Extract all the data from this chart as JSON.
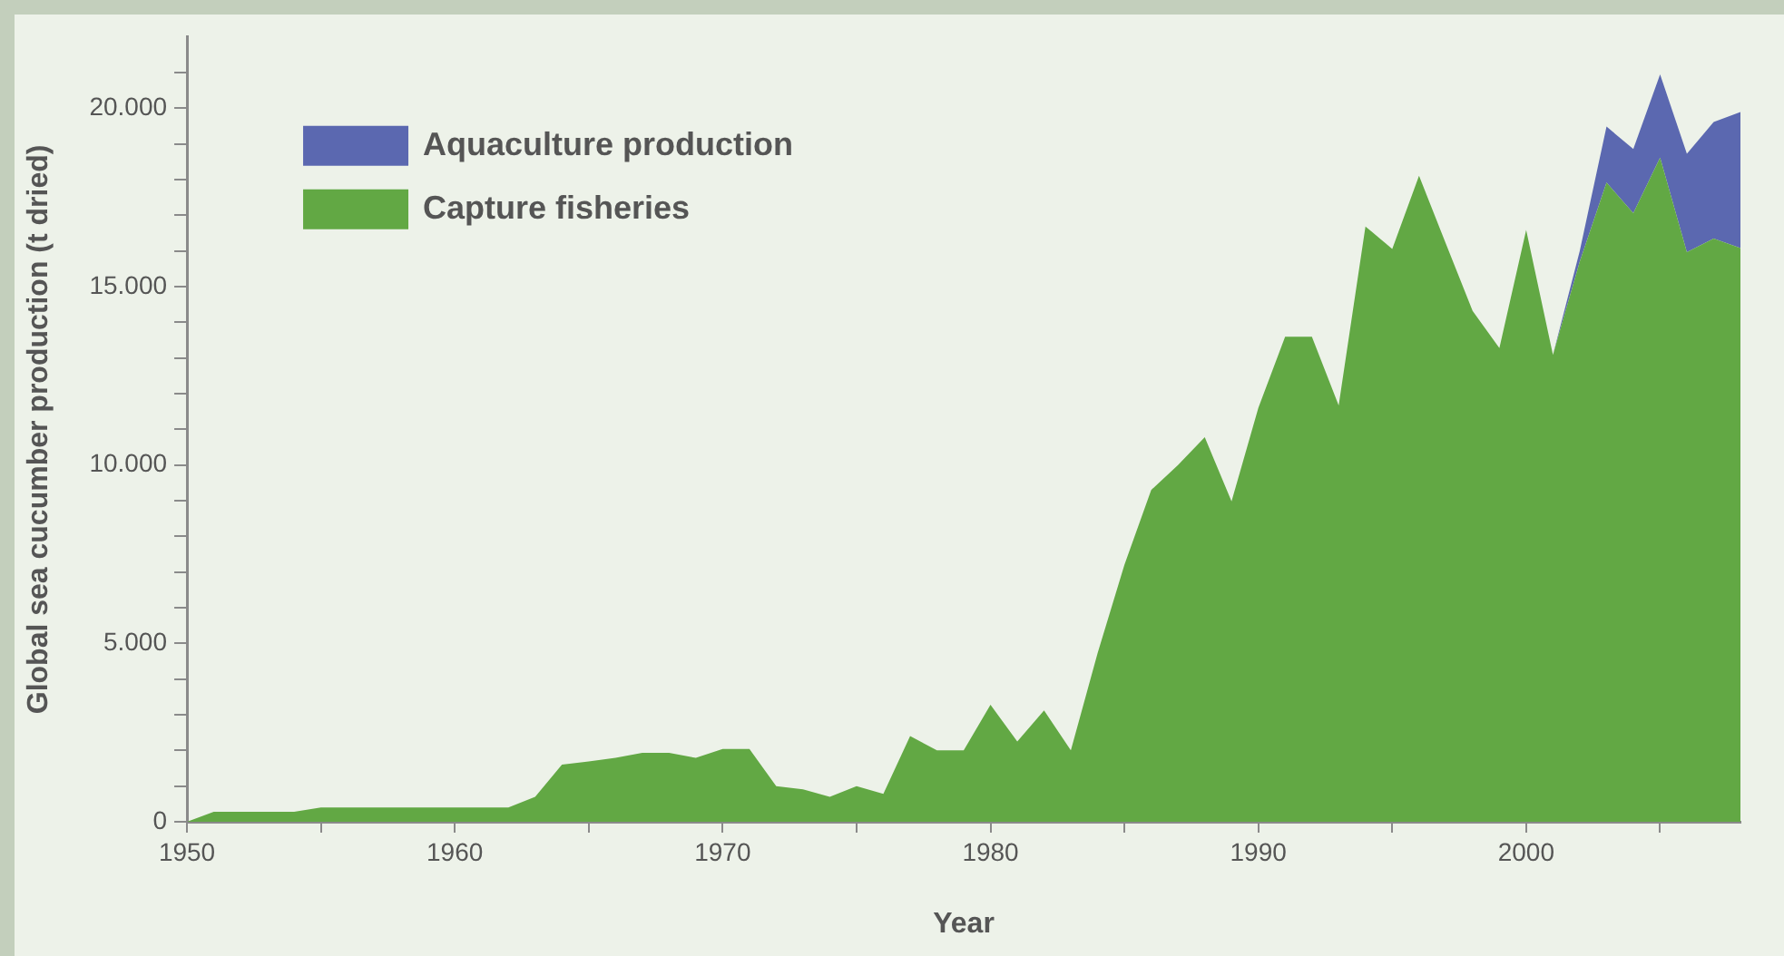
{
  "chart_data": {
    "type": "area",
    "stacked": true,
    "xlabel": "Year",
    "ylabel": "Global sea cucumber production (t dried)",
    "x": [
      1950,
      1951,
      1952,
      1953,
      1954,
      1955,
      1956,
      1957,
      1958,
      1959,
      1960,
      1961,
      1962,
      1963,
      1964,
      1965,
      1966,
      1967,
      1968,
      1969,
      1970,
      1971,
      1972,
      1973,
      1974,
      1975,
      1976,
      1977,
      1978,
      1979,
      1980,
      1981,
      1982,
      1983,
      1984,
      1985,
      1986,
      1987,
      1988,
      1989,
      1990,
      1991,
      1992,
      1993,
      1994,
      1995,
      1996,
      1997,
      1998,
      1999,
      2000,
      2001,
      2002,
      2003,
      2004,
      2005,
      2006,
      2007,
      2008
    ],
    "series": [
      {
        "name": "Capture fisheries",
        "color": "#62a844",
        "values": [
          0,
          280,
          280,
          280,
          280,
          400,
          400,
          400,
          400,
          400,
          400,
          400,
          400,
          700,
          1600,
          1690,
          1790,
          1930,
          1930,
          1790,
          2040,
          2040,
          1000,
          910,
          700,
          1000,
          780,
          2400,
          2000,
          2000,
          3280,
          2250,
          3120,
          2000,
          4730,
          7200,
          9300,
          10000,
          10780,
          8980,
          11600,
          13600,
          13600,
          11670,
          16690,
          16060,
          18110,
          16210,
          14320,
          13280,
          16590,
          13090,
          15700,
          17920,
          17060,
          18620,
          15970,
          16350,
          16080
        ]
      },
      {
        "name": "Aquaculture production",
        "color": "#5b68b0",
        "values": [
          0,
          0,
          0,
          0,
          0,
          0,
          0,
          0,
          0,
          0,
          0,
          0,
          0,
          0,
          0,
          0,
          0,
          0,
          0,
          0,
          0,
          0,
          0,
          0,
          0,
          0,
          0,
          0,
          0,
          0,
          0,
          0,
          0,
          0,
          0,
          0,
          0,
          0,
          0,
          0,
          0,
          0,
          0,
          0,
          0,
          0,
          0,
          0,
          0,
          0,
          0,
          0,
          300,
          1570,
          1800,
          2330,
          2760,
          3270,
          3820
        ]
      }
    ],
    "xlim": [
      1950,
      2008
    ],
    "xticks": [
      1950,
      {
        "value": 1955,
        "label": null
      },
      1960,
      {
        "value": 1965,
        "label": null
      },
      1970,
      {
        "value": 1975,
        "label": null
      },
      1980,
      {
        "value": 1985,
        "label": null
      },
      1990,
      {
        "value": 1995,
        "label": null
      },
      2000,
      {
        "value": 2005,
        "label": null
      }
    ],
    "ylim": [
      0,
      22000
    ],
    "yticks": [
      {
        "value": 0,
        "label": "0"
      },
      {
        "value": 1000,
        "label": null
      },
      {
        "value": 2000,
        "label": null
      },
      {
        "value": 3000,
        "label": null
      },
      {
        "value": 4000,
        "label": null
      },
      {
        "value": 5000,
        "label": "5.000"
      },
      {
        "value": 6000,
        "label": null
      },
      {
        "value": 7000,
        "label": null
      },
      {
        "value": 8000,
        "label": null
      },
      {
        "value": 9000,
        "label": null
      },
      {
        "value": 10000,
        "label": "10.000"
      },
      {
        "value": 11000,
        "label": null
      },
      {
        "value": 12000,
        "label": null
      },
      {
        "value": 13000,
        "label": null
      },
      {
        "value": 14000,
        "label": null
      },
      {
        "value": 15000,
        "label": "15.000"
      },
      {
        "value": 16000,
        "label": null
      },
      {
        "value": 17000,
        "label": null
      },
      {
        "value": 18000,
        "label": null
      },
      {
        "value": 19000,
        "label": null
      },
      {
        "value": 20000,
        "label": "20.000"
      },
      {
        "value": 21000,
        "label": null
      }
    ],
    "grid": false,
    "legend": "top left"
  }
}
